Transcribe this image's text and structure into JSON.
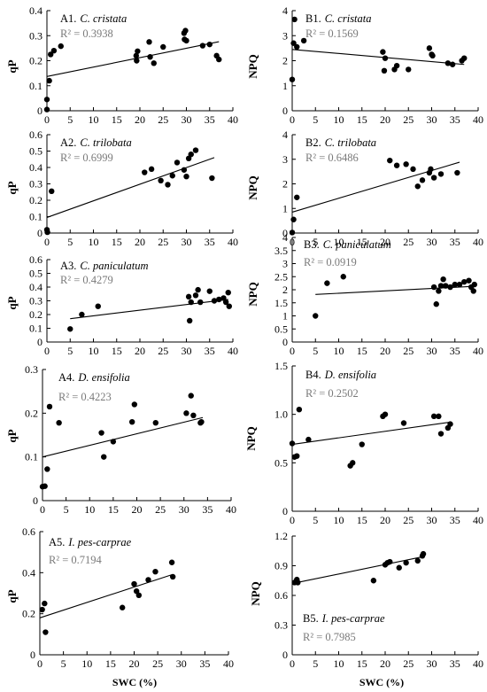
{
  "xaxis_label": "SWC (%)",
  "chart_data": [
    {
      "id": "A1",
      "type": "scatter",
      "label": "A1.",
      "species": "C. cristata",
      "r2": "R² = 0.3938",
      "ylabel": "qP",
      "xlim": [
        0,
        40
      ],
      "ylim": [
        0,
        0.4
      ],
      "xticks": [
        0,
        5,
        10,
        15,
        20,
        25,
        30,
        35,
        40
      ],
      "yticks": [
        0,
        0.1,
        0.2,
        0.3,
        0.4
      ],
      "yticklabels": [
        "0",
        "0.1",
        "0.2",
        "0.3",
        "0.4"
      ],
      "show_xticklabels": true,
      "trend": [
        [
          0,
          0.137
        ],
        [
          37,
          0.276
        ]
      ],
      "points": [
        [
          0,
          0.045
        ],
        [
          0,
          0.005
        ],
        [
          0.5,
          0.12
        ],
        [
          0.8,
          0.225
        ],
        [
          1.5,
          0.24
        ],
        [
          3,
          0.258
        ],
        [
          19.2,
          0.22
        ],
        [
          19.3,
          0.2
        ],
        [
          19.5,
          0.238
        ],
        [
          22,
          0.275
        ],
        [
          22.2,
          0.215
        ],
        [
          23,
          0.19
        ],
        [
          25,
          0.255
        ],
        [
          29.5,
          0.31
        ],
        [
          29.6,
          0.285
        ],
        [
          29.8,
          0.32
        ],
        [
          30,
          0.28
        ],
        [
          33.5,
          0.26
        ],
        [
          35,
          0.265
        ],
        [
          36.5,
          0.22
        ],
        [
          37,
          0.205
        ]
      ]
    },
    {
      "id": "B1",
      "type": "scatter",
      "label": "B1.",
      "species": "C. cristata",
      "r2": "R² = 0.1569",
      "ylabel": "NPQ",
      "xlim": [
        0,
        40
      ],
      "ylim": [
        0,
        4
      ],
      "xticks": [
        0,
        5,
        10,
        15,
        20,
        25,
        30,
        35,
        40
      ],
      "yticks": [
        0,
        1,
        2,
        3,
        4
      ],
      "yticklabels": [
        "0",
        "1",
        "2",
        "3",
        "4"
      ],
      "show_xticklabels": true,
      "trend": [
        [
          0,
          2.45
        ],
        [
          37,
          1.85
        ]
      ],
      "points": [
        [
          0,
          1.25
        ],
        [
          0.3,
          2.7
        ],
        [
          0.5,
          3.65
        ],
        [
          1,
          2.55
        ],
        [
          2.5,
          2.8
        ],
        [
          19.5,
          2.35
        ],
        [
          19.8,
          1.6
        ],
        [
          20,
          2.1
        ],
        [
          22,
          1.65
        ],
        [
          22.5,
          1.8
        ],
        [
          25,
          1.65
        ],
        [
          29.5,
          2.5
        ],
        [
          30,
          2.25
        ],
        [
          30.2,
          2.2
        ],
        [
          33.5,
          1.9
        ],
        [
          34.5,
          1.85
        ],
        [
          36.5,
          2.0
        ],
        [
          37,
          2.1
        ]
      ]
    },
    {
      "id": "A2",
      "type": "scatter",
      "label": "A2.",
      "species": "C. trilobata",
      "r2": "R² = 0.6999",
      "ylabel": "qP",
      "xlim": [
        0,
        40
      ],
      "ylim": [
        0,
        0.6
      ],
      "xticks": [
        0,
        5,
        10,
        15,
        20,
        25,
        30,
        35,
        40
      ],
      "yticks": [
        0,
        0.1,
        0.2,
        0.3,
        0.4,
        0.5,
        0.6
      ],
      "yticklabels": [
        "0",
        "0.1",
        "0.2",
        "0.3",
        "0.4",
        "0.5",
        "0.6"
      ],
      "show_xticklabels": true,
      "trend": [
        [
          0,
          0.095
        ],
        [
          36,
          0.46
        ]
      ],
      "points": [
        [
          0,
          0.02
        ],
        [
          0.1,
          0.005
        ],
        [
          1,
          0.255
        ],
        [
          21,
          0.37
        ],
        [
          22.5,
          0.39
        ],
        [
          24.5,
          0.32
        ],
        [
          26,
          0.295
        ],
        [
          27,
          0.35
        ],
        [
          28,
          0.43
        ],
        [
          29.5,
          0.385
        ],
        [
          30,
          0.345
        ],
        [
          30.5,
          0.455
        ],
        [
          31,
          0.48
        ],
        [
          32,
          0.505
        ],
        [
          35.5,
          0.335
        ]
      ]
    },
    {
      "id": "B2",
      "type": "scatter",
      "label": "B2.",
      "species": "C. trilobata",
      "r2": "R² = 0.6486",
      "ylabel": "NPQ",
      "xlim": [
        0,
        40
      ],
      "ylim": [
        0,
        4
      ],
      "xticks": [
        0,
        5,
        10,
        15,
        20,
        25,
        30,
        35,
        40
      ],
      "yticks": [
        0,
        1,
        2,
        3,
        4
      ],
      "yticklabels": [
        "0",
        "1",
        "2",
        "3",
        "4"
      ],
      "show_xticklabels": true,
      "trend": [
        [
          0,
          0.85
        ],
        [
          36,
          2.88
        ]
      ],
      "points": [
        [
          0,
          0.02
        ],
        [
          0.3,
          0.55
        ],
        [
          1,
          1.45
        ],
        [
          21,
          2.95
        ],
        [
          22.5,
          2.75
        ],
        [
          24.5,
          2.8
        ],
        [
          26,
          2.6
        ],
        [
          27,
          1.9
        ],
        [
          28,
          2.15
        ],
        [
          29.5,
          2.45
        ],
        [
          29.8,
          2.6
        ],
        [
          30.5,
          2.25
        ],
        [
          32,
          2.4
        ],
        [
          35.5,
          2.45
        ]
      ]
    },
    {
      "id": "A3",
      "type": "scatter",
      "label": "A3.",
      "species": "C. paniculatum",
      "r2": "R² = 0.4279",
      "ylabel": "qP",
      "xlim": [
        0,
        40
      ],
      "ylim": [
        0,
        0.6
      ],
      "xticks": [
        0,
        5,
        10,
        15,
        20,
        25,
        30,
        35,
        40
      ],
      "yticks": [
        0,
        0.1,
        0.2,
        0.3,
        0.4,
        0.5,
        0.6
      ],
      "yticklabels": [
        "0",
        "0.1",
        "0.2",
        "0.3",
        "0.4",
        "0.5",
        "0.6"
      ],
      "show_xticklabels": true,
      "trend": [
        [
          5,
          0.17
        ],
        [
          39,
          0.31
        ]
      ],
      "points": [
        [
          5,
          0.095
        ],
        [
          7.5,
          0.2
        ],
        [
          11,
          0.26
        ],
        [
          30.5,
          0.33
        ],
        [
          30.7,
          0.155
        ],
        [
          31,
          0.29
        ],
        [
          32,
          0.34
        ],
        [
          32.5,
          0.38
        ],
        [
          33,
          0.29
        ],
        [
          35,
          0.37
        ],
        [
          36,
          0.3
        ],
        [
          37,
          0.31
        ],
        [
          38,
          0.32
        ],
        [
          38.5,
          0.29
        ],
        [
          39,
          0.36
        ],
        [
          39.2,
          0.26
        ]
      ]
    },
    {
      "id": "B3",
      "type": "scatter",
      "label": "B3.",
      "species": "C. paniculatum",
      "r2": "R² = 0.0919",
      "ylabel": "NPQ",
      "xlim": [
        0,
        40
      ],
      "ylim": [
        0,
        4
      ],
      "xticks": [
        0,
        5,
        10,
        15,
        20,
        25,
        30,
        35,
        40
      ],
      "yticks": [
        0,
        0.5,
        1,
        1.5,
        2,
        2.5,
        3,
        3.5,
        4
      ],
      "yticklabels": [
        "0",
        "0.5",
        "1",
        "1.5",
        "2",
        "2.5",
        "3",
        "3.5",
        "4"
      ],
      "show_xticklabels": true,
      "trend": [
        [
          5,
          1.82
        ],
        [
          39,
          2.13
        ]
      ],
      "points": [
        [
          5,
          1.0
        ],
        [
          7.5,
          2.25
        ],
        [
          11,
          2.5
        ],
        [
          30.5,
          2.1
        ],
        [
          31,
          1.45
        ],
        [
          31.5,
          1.95
        ],
        [
          32,
          2.15
        ],
        [
          32.5,
          2.4
        ],
        [
          33,
          2.15
        ],
        [
          34,
          2.1
        ],
        [
          35,
          2.2
        ],
        [
          36,
          2.2
        ],
        [
          37,
          2.3
        ],
        [
          38,
          2.35
        ],
        [
          38.5,
          2.1
        ],
        [
          39,
          1.95
        ],
        [
          39.2,
          2.2
        ]
      ]
    },
    {
      "id": "A4",
      "type": "scatter",
      "label": "A4.",
      "species": "D. ensifolia",
      "r2": "R² = 0.4223",
      "ylabel": "qP",
      "xlim": [
        0,
        40
      ],
      "ylim": [
        0,
        0.3
      ],
      "xticks": [
        0,
        5,
        10,
        15,
        20,
        25,
        30,
        35,
        40
      ],
      "yticks": [
        0,
        0.1,
        0.2,
        0.3
      ],
      "yticklabels": [
        "0",
        "0.1",
        "0.2",
        "0.3"
      ],
      "show_xticklabels": true,
      "trend": [
        [
          0,
          0.1
        ],
        [
          34,
          0.19
        ]
      ],
      "points": [
        [
          0,
          0.032
        ],
        [
          0.5,
          0.033
        ],
        [
          1,
          0.072
        ],
        [
          1.5,
          0.215
        ],
        [
          3.5,
          0.178
        ],
        [
          12.5,
          0.155
        ],
        [
          13,
          0.1
        ],
        [
          15,
          0.135
        ],
        [
          19,
          0.18
        ],
        [
          19.5,
          0.22
        ],
        [
          24,
          0.178
        ],
        [
          30.5,
          0.2
        ],
        [
          31.5,
          0.24
        ],
        [
          32,
          0.195
        ],
        [
          33.5,
          0.178
        ],
        [
          33.7,
          0.18
        ]
      ]
    },
    {
      "id": "B4",
      "type": "scatter",
      "label": "B4.",
      "species": "D. ensifolia",
      "r2": "R² = 0.2502",
      "ylabel": "NPQ",
      "xlim": [
        0,
        40
      ],
      "ylim": [
        0,
        1.5
      ],
      "xticks": [
        0,
        5,
        10,
        15,
        20,
        25,
        30,
        35,
        40
      ],
      "yticks": [
        0,
        0.5,
        1,
        1.5
      ],
      "yticklabels": [
        "0",
        "0.5",
        "1.0",
        "1.5"
      ],
      "show_xticklabels": true,
      "trend": [
        [
          0,
          0.69
        ],
        [
          34,
          0.92
        ]
      ],
      "points": [
        [
          0,
          0.7
        ],
        [
          0.5,
          0.56
        ],
        [
          1,
          0.57
        ],
        [
          1.5,
          1.05
        ],
        [
          3.5,
          0.74
        ],
        [
          12.5,
          0.47
        ],
        [
          13,
          0.5
        ],
        [
          15,
          0.69
        ],
        [
          19.5,
          0.98
        ],
        [
          20,
          1.0
        ],
        [
          24,
          0.91
        ],
        [
          30.5,
          0.98
        ],
        [
          31.5,
          0.98
        ],
        [
          32,
          0.8
        ],
        [
          33.5,
          0.86
        ],
        [
          34,
          0.9
        ]
      ]
    },
    {
      "id": "A5",
      "type": "scatter",
      "label": "A5.",
      "species": "I. pes-carprae",
      "r2": "R² = 0.7194",
      "ylabel": "qP",
      "xlim": [
        0,
        40
      ],
      "ylim": [
        0,
        0.6
      ],
      "xticks": [
        0,
        5,
        10,
        15,
        20,
        25,
        30,
        35,
        40
      ],
      "yticks": [
        0,
        0.2,
        0.4,
        0.6
      ],
      "yticklabels": [
        "0",
        "0.2",
        "0.4",
        "0.6"
      ],
      "show_xticklabels": true,
      "trend": [
        [
          0,
          0.18
        ],
        [
          28,
          0.39
        ]
      ],
      "points": [
        [
          0.5,
          0.22
        ],
        [
          1,
          0.25
        ],
        [
          1.2,
          0.11
        ],
        [
          17.5,
          0.23
        ],
        [
          20,
          0.345
        ],
        [
          20.5,
          0.31
        ],
        [
          21,
          0.29
        ],
        [
          23,
          0.365
        ],
        [
          24.5,
          0.405
        ],
        [
          28,
          0.45
        ],
        [
          28.2,
          0.38
        ]
      ]
    },
    {
      "id": "B5",
      "type": "scatter",
      "label": "B5.",
      "species": "I. pes-carprae",
      "r2": "R² = 0.7985",
      "ylabel": "NPQ",
      "xlim": [
        0,
        40
      ],
      "ylim": [
        0,
        1.2
      ],
      "xticks": [
        0,
        5,
        10,
        15,
        20,
        25,
        30,
        35,
        40
      ],
      "yticks": [
        0,
        0.3,
        0.6,
        0.9,
        1.2
      ],
      "yticklabels": [
        "0",
        "0.3",
        "0.6",
        "0.9",
        "1.2"
      ],
      "show_xticklabels": true,
      "trend": [
        [
          0,
          0.72
        ],
        [
          28,
          0.99
        ]
      ],
      "points": [
        [
          0.5,
          0.73
        ],
        [
          1,
          0.76
        ],
        [
          1.2,
          0.73
        ],
        [
          17.5,
          0.75
        ],
        [
          20,
          0.91
        ],
        [
          20.5,
          0.93
        ],
        [
          21,
          0.94
        ],
        [
          23,
          0.88
        ],
        [
          24.5,
          0.93
        ],
        [
          27,
          0.95
        ],
        [
          28,
          1.0
        ],
        [
          28.2,
          1.02
        ]
      ]
    }
  ]
}
